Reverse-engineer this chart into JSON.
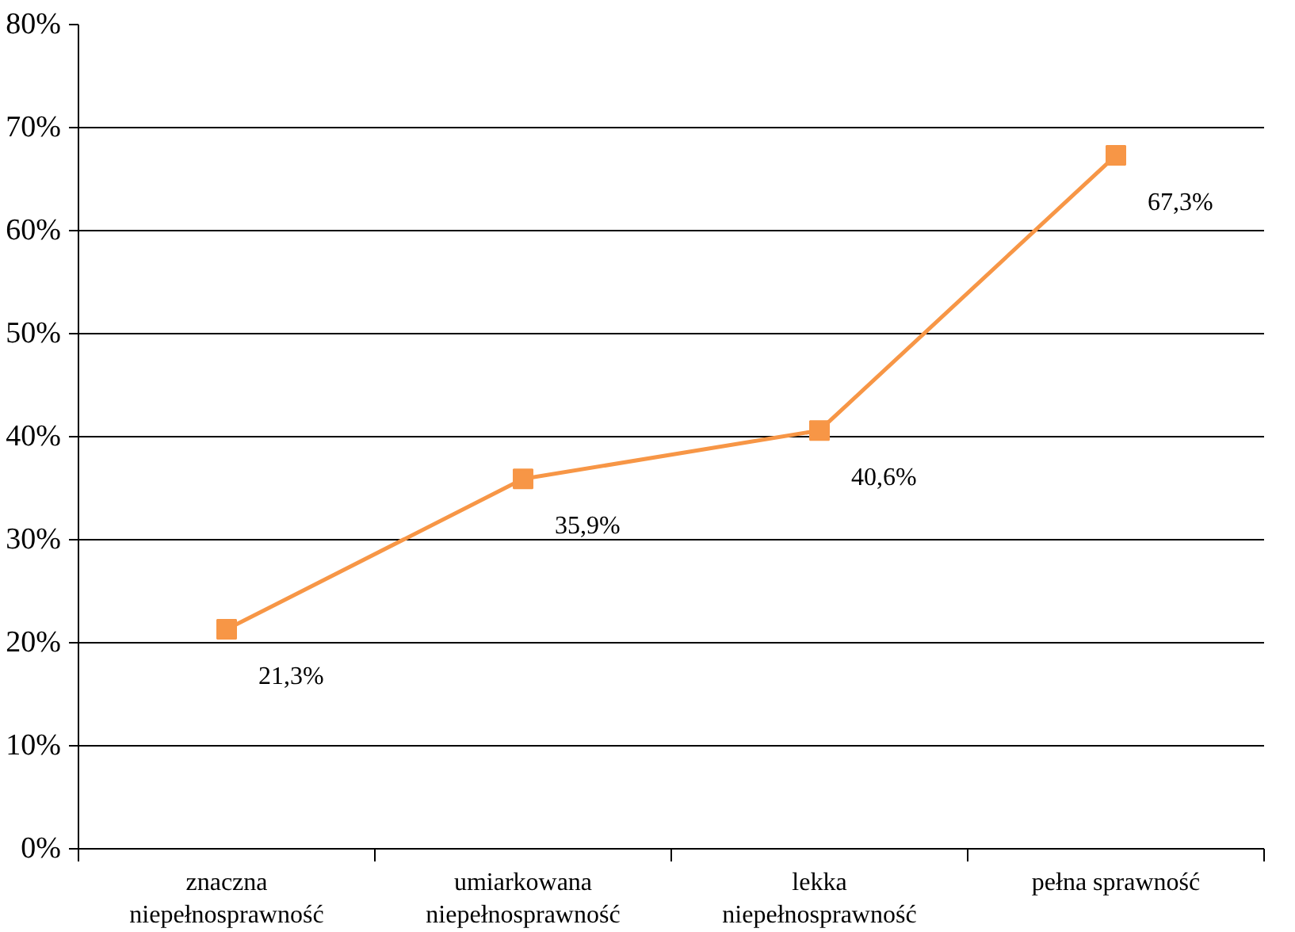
{
  "chart_data": {
    "type": "line",
    "categories": [
      "znaczna\nniepełnosprawność",
      "umiarkowana\nniepełnosprawność",
      "lekka\nniepełnosprawność",
      "pełna sprawność"
    ],
    "series": [
      {
        "color": "#f79646",
        "values": [
          21.3,
          35.9,
          40.6,
          67.3
        ],
        "value_labels": [
          "21,3%",
          "35,9%",
          "40,6%",
          "67,3%"
        ]
      }
    ],
    "ylim": [
      0,
      80
    ],
    "yticks": [
      {
        "value": 0,
        "label": "0%"
      },
      {
        "value": 10,
        "label": "10%"
      },
      {
        "value": 20,
        "label": "20%"
      },
      {
        "value": 30,
        "label": "30%"
      },
      {
        "value": 40,
        "label": "40%"
      },
      {
        "value": 50,
        "label": "50%"
      },
      {
        "value": 60,
        "label": "60%"
      },
      {
        "value": 70,
        "label": "70%"
      },
      {
        "value": 80,
        "label": "80%"
      }
    ],
    "grid": "y",
    "marker": "square",
    "line_style": "solid"
  }
}
